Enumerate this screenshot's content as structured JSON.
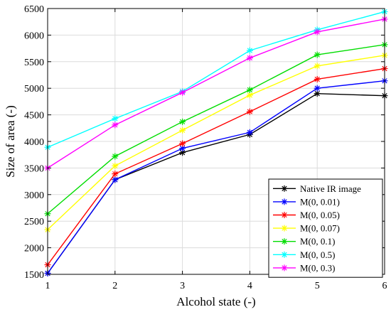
{
  "chart_data": {
    "type": "line",
    "title": "",
    "xlabel": "Alcohol state (-)",
    "ylabel": "Size of area (-)",
    "x": [
      1,
      2,
      3,
      4,
      5,
      6
    ],
    "xlim": [
      1,
      6
    ],
    "ylim": [
      1500,
      6500
    ],
    "xticks": [
      1,
      2,
      3,
      4,
      5,
      6
    ],
    "yticks": [
      1500,
      2000,
      2500,
      3000,
      3500,
      4000,
      4500,
      5000,
      5500,
      6000,
      6500
    ],
    "grid": true,
    "legend_position": "bottom-right",
    "marker": "asterisk",
    "series": [
      {
        "name": "Native IR image",
        "color": "#000000",
        "values": [
          1520,
          3280,
          3790,
          4130,
          4900,
          4860
        ]
      },
      {
        "name": "M(0, 0.01)",
        "color": "#0000ff",
        "values": [
          1520,
          3280,
          3870,
          4170,
          5000,
          5140
        ]
      },
      {
        "name": "M(0, 0.05)",
        "color": "#ff0000",
        "values": [
          1680,
          3390,
          3960,
          4560,
          5170,
          5370
        ]
      },
      {
        "name": "M(0, 0.07)",
        "color": "#ffff00",
        "values": [
          2340,
          3540,
          4210,
          4870,
          5420,
          5620
        ]
      },
      {
        "name": "M(0, 0.1)",
        "color": "#00dd00",
        "values": [
          2640,
          3720,
          4370,
          4970,
          5630,
          5820
        ]
      },
      {
        "name": "M(0, 0.5)",
        "color": "#00ffff",
        "values": [
          3890,
          4430,
          4940,
          5710,
          6100,
          6440
        ]
      },
      {
        "name": "M(0, 0.3)",
        "color": "#ff00ff",
        "values": [
          3500,
          4310,
          4920,
          5570,
          6060,
          6300
        ]
      }
    ]
  }
}
